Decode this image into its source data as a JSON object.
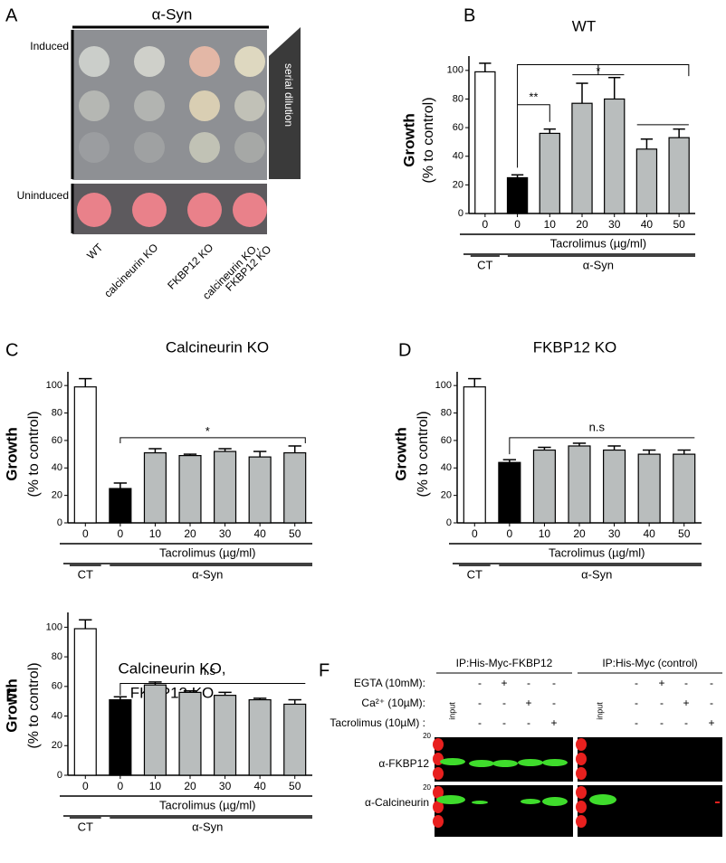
{
  "chart_data": [
    {
      "type": "bar",
      "letter": "B",
      "title": [
        "WT"
      ],
      "ylabel": [
        "Growth",
        "(% to control)"
      ],
      "categories": [
        "0",
        "0",
        "10",
        "20",
        "30",
        "40",
        "50"
      ],
      "values": [
        99,
        25,
        56,
        77,
        80,
        45,
        53
      ],
      "errors": [
        6,
        2,
        3,
        14,
        15,
        7,
        6
      ],
      "colors": [
        "#ffffff",
        "#000000",
        "#b9bdbd",
        "#b9bdbd",
        "#b9bdbd",
        "#b9bdbd",
        "#b9bdbd"
      ],
      "xlabel": "Tacrolimus (µg/ml)",
      "group_labels": [
        "CT",
        "α-Syn"
      ],
      "annotations": [
        "*",
        "**",
        "*"
      ],
      "ylim": [
        0,
        110
      ],
      "yticks": [
        0,
        20,
        40,
        60,
        80,
        100
      ]
    },
    {
      "type": "bar",
      "letter": "C",
      "title": [
        "Calcineurin KO"
      ],
      "ylabel": [
        "Growth",
        "(% to control)"
      ],
      "categories": [
        "0",
        "0",
        "10",
        "20",
        "30",
        "40",
        "50"
      ],
      "values": [
        99,
        25,
        51,
        49,
        52,
        48,
        51
      ],
      "errors": [
        6,
        4,
        3,
        1,
        2,
        4,
        5
      ],
      "colors": [
        "#ffffff",
        "#000000",
        "#b9bdbd",
        "#b9bdbd",
        "#b9bdbd",
        "#b9bdbd",
        "#b9bdbd"
      ],
      "xlabel": "Tacrolimus (µg/ml)",
      "group_labels": [
        "CT",
        "α-Syn"
      ],
      "annotations": [
        "*"
      ],
      "ylim": [
        0,
        110
      ],
      "yticks": [
        0,
        20,
        40,
        60,
        80,
        100
      ]
    },
    {
      "type": "bar",
      "letter": "D",
      "title": [
        "FKBP12 KO"
      ],
      "ylabel": [
        "Growth",
        "(% to control)"
      ],
      "categories": [
        "0",
        "0",
        "10",
        "20",
        "30",
        "40",
        "50"
      ],
      "values": [
        99,
        44,
        53,
        56,
        53,
        50,
        50
      ],
      "errors": [
        6,
        2,
        2,
        2,
        3,
        3,
        3
      ],
      "colors": [
        "#ffffff",
        "#000000",
        "#b9bdbd",
        "#b9bdbd",
        "#b9bdbd",
        "#b9bdbd",
        "#b9bdbd"
      ],
      "xlabel": "Tacrolimus (µg/ml)",
      "group_labels": [
        "CT",
        "α-Syn"
      ],
      "annotations": [
        "n.s"
      ],
      "ylim": [
        0,
        110
      ],
      "yticks": [
        0,
        20,
        40,
        60,
        80,
        100
      ]
    },
    {
      "type": "bar",
      "letter": "E",
      "title": [
        "Calcineurin KO,",
        "FKBP12 KO"
      ],
      "ylabel": [
        "Growth",
        "(% to control)"
      ],
      "categories": [
        "0",
        "0",
        "10",
        "20",
        "30",
        "40",
        "50"
      ],
      "values": [
        99,
        51,
        61,
        56,
        54,
        51,
        48
      ],
      "errors": [
        6,
        2,
        2,
        1,
        2,
        1,
        3
      ],
      "colors": [
        "#ffffff",
        "#000000",
        "#b9bdbd",
        "#b9bdbd",
        "#b9bdbd",
        "#b9bdbd",
        "#b9bdbd"
      ],
      "xlabel": "Tacrolimus (µg/ml)",
      "group_labels": [
        "CT",
        "α-Syn"
      ],
      "annotations": [
        "n.s"
      ],
      "ylim": [
        0,
        110
      ],
      "yticks": [
        0,
        20,
        40,
        60,
        80,
        100
      ]
    }
  ],
  "panel_a": {
    "letter": "A",
    "title": "α-Syn",
    "rows": [
      "Induced",
      "Uninduced"
    ],
    "dilution": "serial dilution",
    "strains": [
      [
        "WT"
      ],
      [
        "calcineurin KO"
      ],
      [
        "FKBP12 KO"
      ],
      [
        "calcineurin KO,",
        "FKBP12 KO"
      ]
    ]
  },
  "panel_f": {
    "letter": "F",
    "treatment_labels": [
      "EGTA (10mM):",
      "Ca²⁺ (10µM):",
      "Tacrolimus (10µM) :"
    ],
    "blots": [
      {
        "title": "IP:His-Myc-FKBP12",
        "input": "input",
        "treatments": [
          [
            "-",
            "+",
            "-",
            "-"
          ],
          [
            "-",
            "-",
            "+",
            "-"
          ],
          [
            "-",
            "-",
            "-",
            "+"
          ]
        ]
      },
      {
        "title": "IP:His-Myc (control)",
        "input": "input",
        "treatments": [
          [
            "-",
            "+",
            "-",
            "-"
          ],
          [
            "-",
            "-",
            "+",
            "-"
          ],
          [
            "-",
            "-",
            "-",
            "+"
          ]
        ]
      }
    ],
    "antibodies": [
      "α-FKBP12",
      "α-Calcineurin"
    ],
    "marker": "20"
  }
}
